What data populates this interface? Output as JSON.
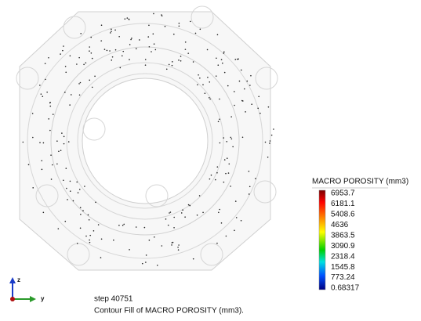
{
  "legend": {
    "title": "MACRO POROSITY (mm3)",
    "labels": [
      "6953.7",
      "6181.1",
      "5408.6",
      "4636",
      "3863.5",
      "3090.9",
      "2318.4",
      "1545.8",
      "773.24",
      "0.68317"
    ]
  },
  "triad": {
    "z": "z",
    "y": "y"
  },
  "footer": {
    "step": "step 40751",
    "caption": "Contour Fill of MACRO POROSITY (mm3)."
  }
}
